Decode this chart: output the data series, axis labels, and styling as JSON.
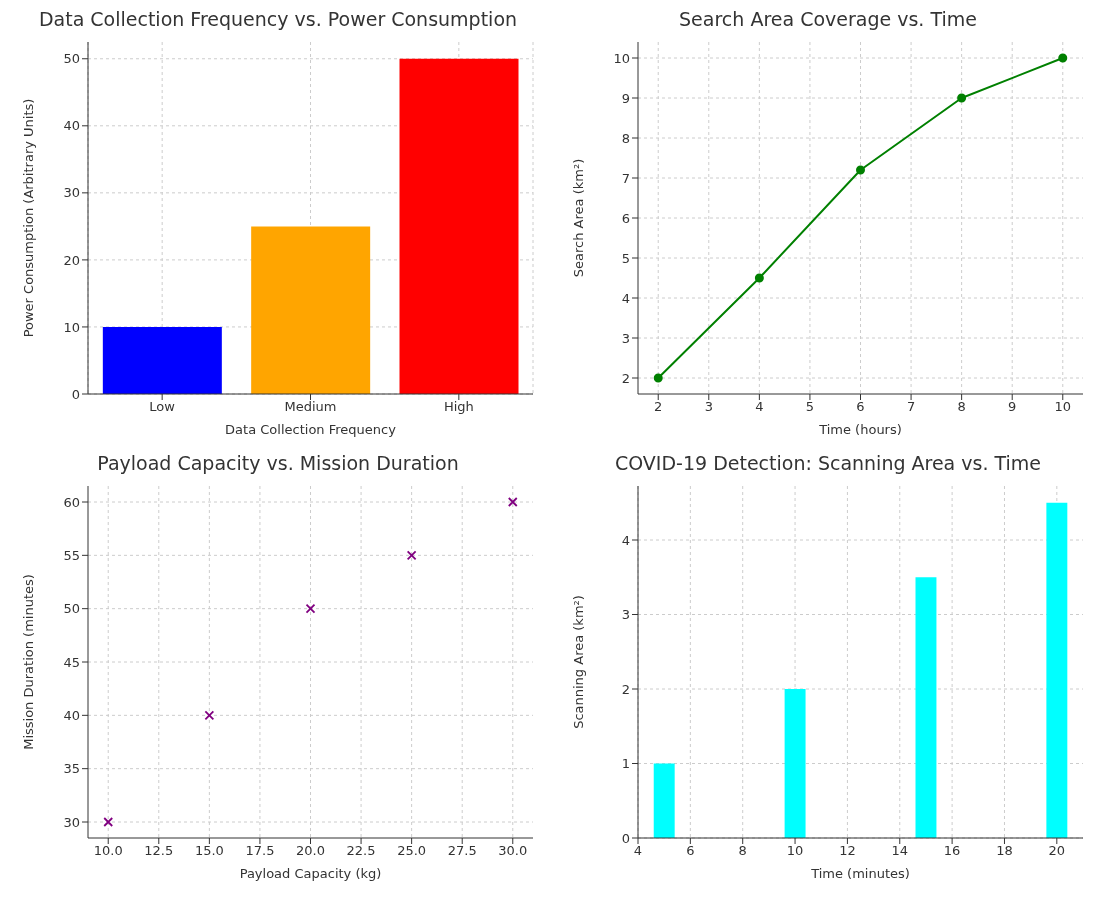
{
  "chart_data": [
    {
      "type": "bar",
      "title": "Data Collection Frequency vs. Power Consumption",
      "xlabel": "Data Collection Frequency",
      "ylabel": "Power Consumption (Arbitrary Units)",
      "categories": [
        "Low",
        "Medium",
        "High"
      ],
      "values": [
        10,
        25,
        50
      ],
      "colors": [
        "#0000ff",
        "#ffa500",
        "#ff0000"
      ],
      "ylim": [
        0,
        52.5
      ],
      "yticks": [
        0,
        10,
        20,
        30,
        40,
        50
      ],
      "grid": true
    },
    {
      "type": "line",
      "title": "Search Area Coverage vs. Time",
      "xlabel": "Time (hours)",
      "ylabel": "Search Area (km²)",
      "x": [
        2,
        4,
        6,
        8,
        10
      ],
      "values": [
        2,
        4.5,
        7.2,
        9,
        10
      ],
      "color": "#008000",
      "marker": "circle",
      "xlim": [
        1.6,
        10.4
      ],
      "xticks": [
        2,
        3,
        4,
        5,
        6,
        7,
        8,
        9,
        10
      ],
      "ylim": [
        1.6,
        10.4
      ],
      "yticks": [
        2,
        3,
        4,
        5,
        6,
        7,
        8,
        9,
        10
      ],
      "grid": true
    },
    {
      "type": "scatter",
      "title": "Payload Capacity vs. Mission Duration",
      "xlabel": "Payload Capacity (kg)",
      "ylabel": "Mission Duration (minutes)",
      "x": [
        10,
        15,
        20,
        25,
        30
      ],
      "values": [
        30,
        40,
        50,
        55,
        60
      ],
      "color": "#800080",
      "marker": "cross",
      "xlim": [
        9,
        31
      ],
      "xticks": [
        {
          "value": 10,
          "label": "10.0"
        },
        {
          "value": 12.5,
          "label": "12.5"
        },
        {
          "value": 15,
          "label": "15.0"
        },
        {
          "value": 17.5,
          "label": "17.5"
        },
        {
          "value": 20,
          "label": "20.0"
        },
        {
          "value": 22.5,
          "label": "22.5"
        },
        {
          "value": 25,
          "label": "25.0"
        },
        {
          "value": 27.5,
          "label": "27.5"
        },
        {
          "value": 30,
          "label": "30.0"
        }
      ],
      "ylim": [
        28.5,
        61.5
      ],
      "yticks": [
        30,
        35,
        40,
        45,
        50,
        55,
        60
      ],
      "grid": true
    },
    {
      "type": "bar",
      "title": "COVID-19 Detection: Scanning Area vs. Time",
      "xlabel": "Time (minutes)",
      "ylabel": "Scanning Area (km²)",
      "x": [
        5,
        10,
        15,
        20
      ],
      "values": [
        1,
        2,
        3.5,
        4.5
      ],
      "color": "#00ffff",
      "xlim": [
        4,
        21
      ],
      "xticks": [
        4,
        6,
        8,
        10,
        12,
        14,
        16,
        18,
        20
      ],
      "ylim": [
        0,
        4.725
      ],
      "yticks": [
        0,
        1,
        2,
        3,
        4
      ],
      "grid": true
    }
  ]
}
